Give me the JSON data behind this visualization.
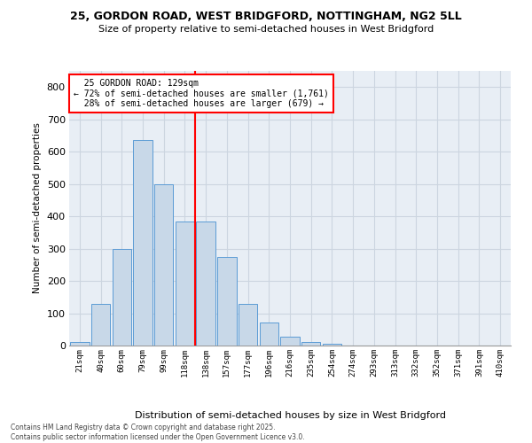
{
  "title1": "25, GORDON ROAD, WEST BRIDGFORD, NOTTINGHAM, NG2 5LL",
  "title2": "Size of property relative to semi-detached houses in West Bridgford",
  "xlabel": "Distribution of semi-detached houses by size in West Bridgford",
  "ylabel": "Number of semi-detached properties",
  "bar_labels": [
    "21sqm",
    "40sqm",
    "60sqm",
    "79sqm",
    "99sqm",
    "118sqm",
    "138sqm",
    "157sqm",
    "177sqm",
    "196sqm",
    "216sqm",
    "235sqm",
    "254sqm",
    "274sqm",
    "293sqm",
    "313sqm",
    "332sqm",
    "352sqm",
    "371sqm",
    "391sqm",
    "410sqm"
  ],
  "bar_values": [
    10,
    130,
    300,
    635,
    500,
    385,
    385,
    275,
    130,
    70,
    27,
    12,
    5,
    0,
    0,
    0,
    0,
    0,
    0,
    0,
    0
  ],
  "bar_color": "#c8d8e8",
  "bar_edge_color": "#5b9bd5",
  "pct_smaller": 72,
  "count_smaller": 1761,
  "pct_larger": 28,
  "count_larger": 679,
  "property_label": "25 GORDON ROAD: 129sqm",
  "ylim": [
    0,
    850
  ],
  "yticks": [
    0,
    100,
    200,
    300,
    400,
    500,
    600,
    700,
    800
  ],
  "grid_color": "#ccd5e0",
  "background_color": "#e8eef5",
  "footnote": "Contains HM Land Registry data © Crown copyright and database right 2025.\nContains public sector information licensed under the Open Government Licence v3.0."
}
